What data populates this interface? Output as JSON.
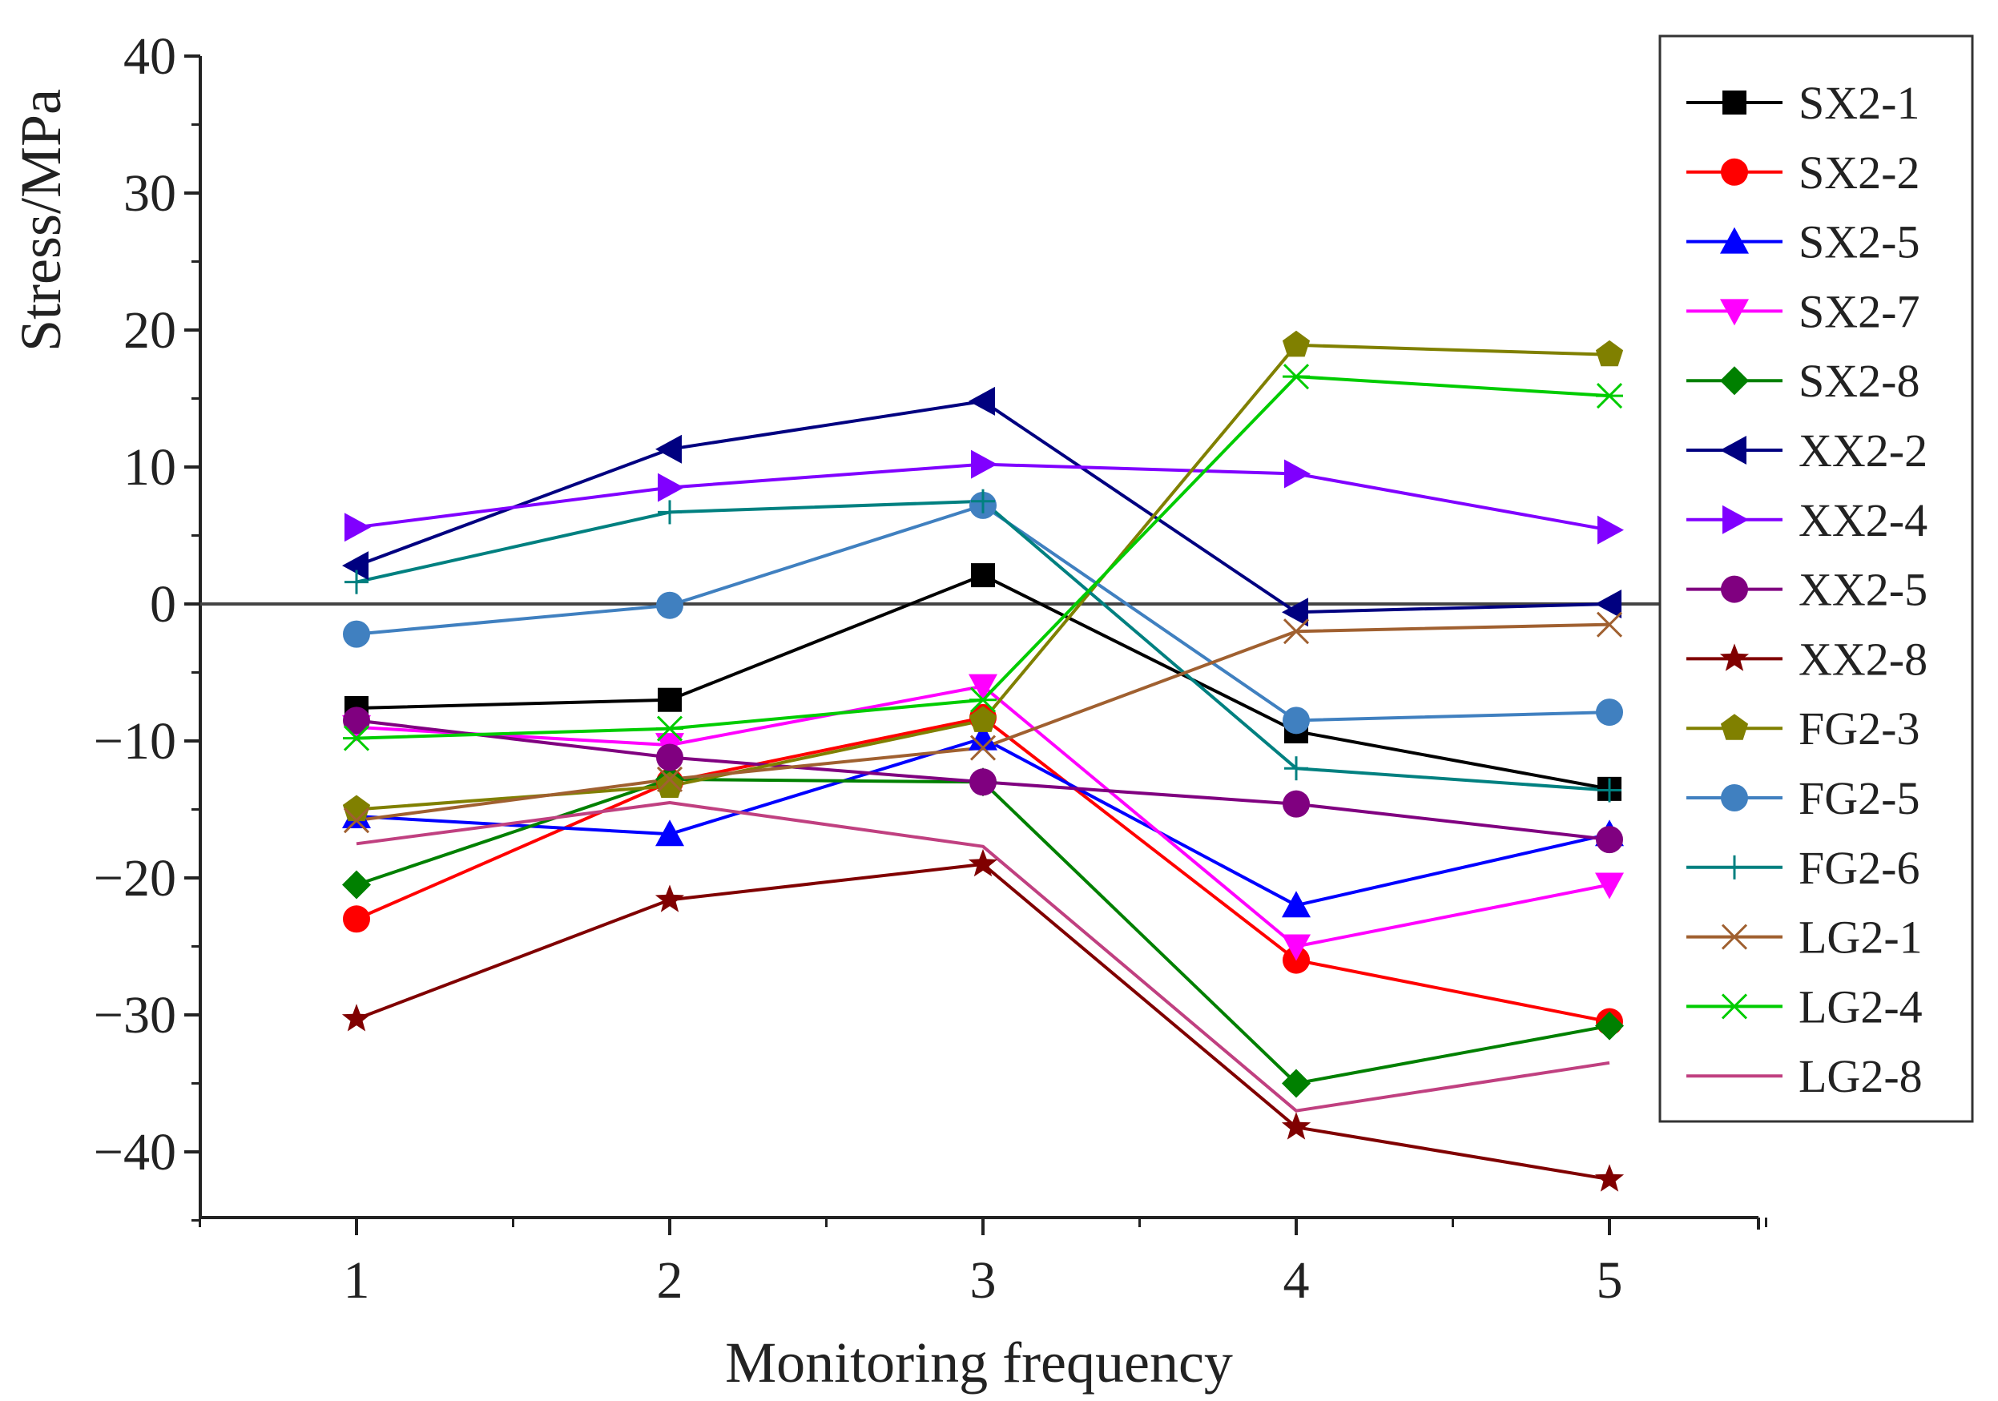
{
  "chart_data": {
    "type": "line",
    "title": "",
    "xlabel": "Monitoring frequency",
    "ylabel": "Stress/MPa",
    "categories": [
      1,
      2,
      3,
      4,
      5
    ],
    "x_ticks": [
      "1",
      "2",
      "3",
      "4",
      "5"
    ],
    "y_ticks": [
      "40",
      "30",
      "20",
      "10",
      "0",
      "−10",
      "−20",
      "−30",
      "−40"
    ],
    "y_tick_values": [
      40,
      30,
      20,
      10,
      0,
      -10,
      -20,
      -30,
      -40
    ],
    "xlim": [
      0.5,
      5.5
    ],
    "ylim": [
      -45,
      40
    ],
    "zero_line": true,
    "grid": false,
    "legend_position": "right",
    "series": [
      {
        "name": "SX2-1",
        "color": "#000000",
        "marker": "square",
        "values": [
          -7.6,
          -7.0,
          2.1,
          -9.3,
          -13.5
        ]
      },
      {
        "name": "SX2-2",
        "color": "#ff0000",
        "marker": "circle",
        "values": [
          -23.0,
          -13.0,
          -8.3,
          -26.0,
          -30.5
        ]
      },
      {
        "name": "SX2-5",
        "color": "#0000ff",
        "marker": "triangle-up",
        "values": [
          -15.5,
          -16.8,
          -9.8,
          -22.0,
          -16.8
        ]
      },
      {
        "name": "SX2-7",
        "color": "#ff00ff",
        "marker": "triangle-down",
        "values": [
          -9.0,
          -10.3,
          -6.0,
          -25.0,
          -20.5
        ]
      },
      {
        "name": "SX2-8",
        "color": "#008000",
        "marker": "diamond",
        "values": [
          -20.5,
          -12.8,
          -13.0,
          -35.0,
          -30.8
        ]
      },
      {
        "name": "XX2-2",
        "color": "#000080",
        "marker": "triangle-left",
        "values": [
          2.8,
          11.3,
          14.8,
          -0.6,
          0.0
        ]
      },
      {
        "name": "XX2-4",
        "color": "#8000ff",
        "marker": "triangle-right",
        "values": [
          5.6,
          8.5,
          10.2,
          9.5,
          5.4
        ]
      },
      {
        "name": "XX2-5",
        "color": "#800080",
        "marker": "circle",
        "values": [
          -8.5,
          -11.2,
          -13.0,
          -14.6,
          -17.2
        ]
      },
      {
        "name": "XX2-8",
        "color": "#800000",
        "marker": "star",
        "values": [
          -30.3,
          -21.6,
          -19.0,
          -38.2,
          -42.0
        ]
      },
      {
        "name": "FG2-3",
        "color": "#808000",
        "marker": "pentagon",
        "values": [
          -15.0,
          -13.3,
          -8.5,
          18.9,
          18.2
        ]
      },
      {
        "name": "FG2-5",
        "color": "#4080c0",
        "marker": "circle",
        "values": [
          -2.2,
          -0.1,
          7.2,
          -8.5,
          -7.9
        ]
      },
      {
        "name": "FG2-6",
        "color": "#008080",
        "marker": "plus",
        "values": [
          1.6,
          6.7,
          7.5,
          -12.0,
          -13.6
        ]
      },
      {
        "name": "LG2-1",
        "color": "#a06030",
        "marker": "x",
        "values": [
          -15.8,
          -12.8,
          -10.5,
          -2.0,
          -1.5
        ]
      },
      {
        "name": "LG2-4",
        "color": "#00cc00",
        "marker": "asterisk",
        "values": [
          -9.8,
          -9.1,
          -7.0,
          16.6,
          15.2
        ]
      },
      {
        "name": "LG2-8",
        "color": "#c04080",
        "marker": "none",
        "values": [
          -17.5,
          -14.5,
          -17.7,
          -37.0,
          -33.5
        ]
      }
    ]
  }
}
